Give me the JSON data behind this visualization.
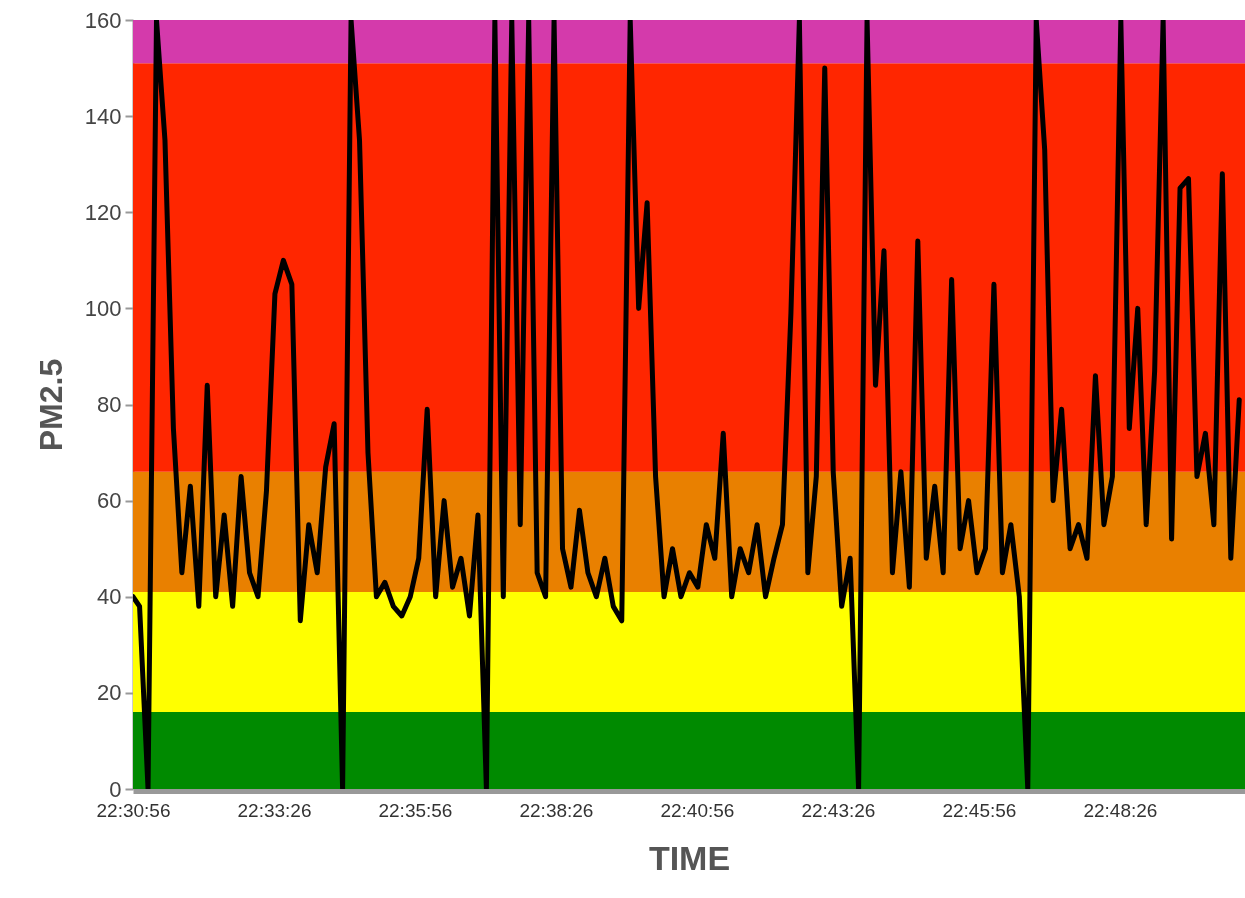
{
  "chart_data": {
    "type": "line",
    "xlabel": "TIME",
    "ylabel": "PM2.5",
    "grid": false,
    "xlim": [
      22.515556,
      22.8442
    ],
    "xticks": [
      {
        "value": 22.515556,
        "label": "22:30:56"
      },
      {
        "value": 22.557222,
        "label": "22:33:26"
      },
      {
        "value": 22.598889,
        "label": "22:35:56"
      },
      {
        "value": 22.640556,
        "label": "22:38:26"
      },
      {
        "value": 22.682222,
        "label": "22:40:56"
      },
      {
        "value": 22.723889,
        "label": "22:43:26"
      },
      {
        "value": 22.765556,
        "label": "22:45:56"
      },
      {
        "value": 22.807222,
        "label": "22:48:26"
      }
    ],
    "ylim": [
      0,
      160
    ],
    "yticks": [
      0,
      20,
      40,
      60,
      80,
      100,
      120,
      140,
      160
    ],
    "bands": [
      {
        "axis": "y",
        "from": 0,
        "to": 16,
        "color": "#008a00"
      },
      {
        "axis": "y",
        "from": 16,
        "to": 41,
        "color": "#ffff00"
      },
      {
        "axis": "y",
        "from": 41,
        "to": 66,
        "color": "#e98000"
      },
      {
        "axis": "y",
        "from": 66,
        "to": 151,
        "color": "#ff2600"
      },
      {
        "axis": "y",
        "from": 151,
        "to": 160,
        "color": "#d43aab"
      }
    ],
    "x": [
      22.515556,
      22.5175,
      22.52,
      22.5225,
      22.525,
      22.5275,
      22.53,
      22.5325,
      22.535,
      22.5375,
      22.54,
      22.5425,
      22.545,
      22.5475,
      22.55,
      22.5525,
      22.555,
      22.5575,
      22.56,
      22.5625,
      22.565,
      22.5675,
      22.57,
      22.5725,
      22.575,
      22.5775,
      22.58,
      22.5825,
      22.585,
      22.5875,
      22.59,
      22.5925,
      22.595,
      22.5975,
      22.6,
      22.6025,
      22.605,
      22.6075,
      22.61,
      22.6125,
      22.615,
      22.6175,
      22.62,
      22.6225,
      22.625,
      22.6275,
      22.63,
      22.6325,
      22.635,
      22.6375,
      22.64,
      22.6425,
      22.645,
      22.6475,
      22.65,
      22.6525,
      22.655,
      22.6575,
      22.66,
      22.6625,
      22.665,
      22.6675,
      22.67,
      22.6725,
      22.675,
      22.6775,
      22.68,
      22.6825,
      22.685,
      22.6875,
      22.69,
      22.6925,
      22.695,
      22.6975,
      22.7,
      22.7025,
      22.705,
      22.7075,
      22.71,
      22.7125,
      22.715,
      22.7175,
      22.72,
      22.7225,
      22.725,
      22.7275,
      22.73,
      22.7325,
      22.735,
      22.7375,
      22.74,
      22.7425,
      22.745,
      22.7475,
      22.75,
      22.7525,
      22.755,
      22.7575,
      22.76,
      22.7625,
      22.765,
      22.7675,
      22.77,
      22.7725,
      22.775,
      22.7775,
      22.78,
      22.7825,
      22.785,
      22.7875,
      22.79,
      22.7925,
      22.795,
      22.7975,
      22.8,
      22.8025,
      22.805,
      22.8075,
      22.81,
      22.8125,
      22.815,
      22.8175,
      22.82,
      22.8225,
      22.825,
      22.8275,
      22.83,
      22.8325,
      22.835,
      22.8375,
      22.84,
      22.8425
    ],
    "series": [
      {
        "color": "#000000",
        "values": [
          40,
          38,
          0,
          160,
          135,
          75,
          45,
          63,
          38,
          84,
          40,
          57,
          38,
          65,
          45,
          40,
          62,
          103,
          110,
          105,
          35,
          55,
          45,
          67,
          76,
          0,
          160,
          135,
          70,
          40,
          43,
          38,
          36,
          40,
          48,
          79,
          40,
          60,
          42,
          48,
          36,
          57,
          0,
          160,
          40,
          160,
          55,
          160,
          45,
          40,
          160,
          50,
          42,
          58,
          45,
          40,
          48,
          38,
          35,
          160,
          100,
          122,
          65,
          40,
          50,
          40,
          45,
          42,
          55,
          48,
          74,
          40,
          50,
          45,
          55,
          40,
          48,
          55,
          99,
          160,
          45,
          65,
          150,
          66,
          38,
          48,
          0,
          160,
          84,
          112,
          45,
          66,
          42,
          114,
          48,
          63,
          45,
          106,
          50,
          60,
          45,
          50,
          105,
          45,
          55,
          40,
          0,
          160,
          133,
          60,
          79,
          50,
          55,
          48,
          86,
          55,
          65,
          160,
          75,
          100,
          55,
          87,
          160,
          52,
          125,
          127,
          65,
          74,
          55,
          128,
          48,
          81
        ]
      }
    ]
  }
}
